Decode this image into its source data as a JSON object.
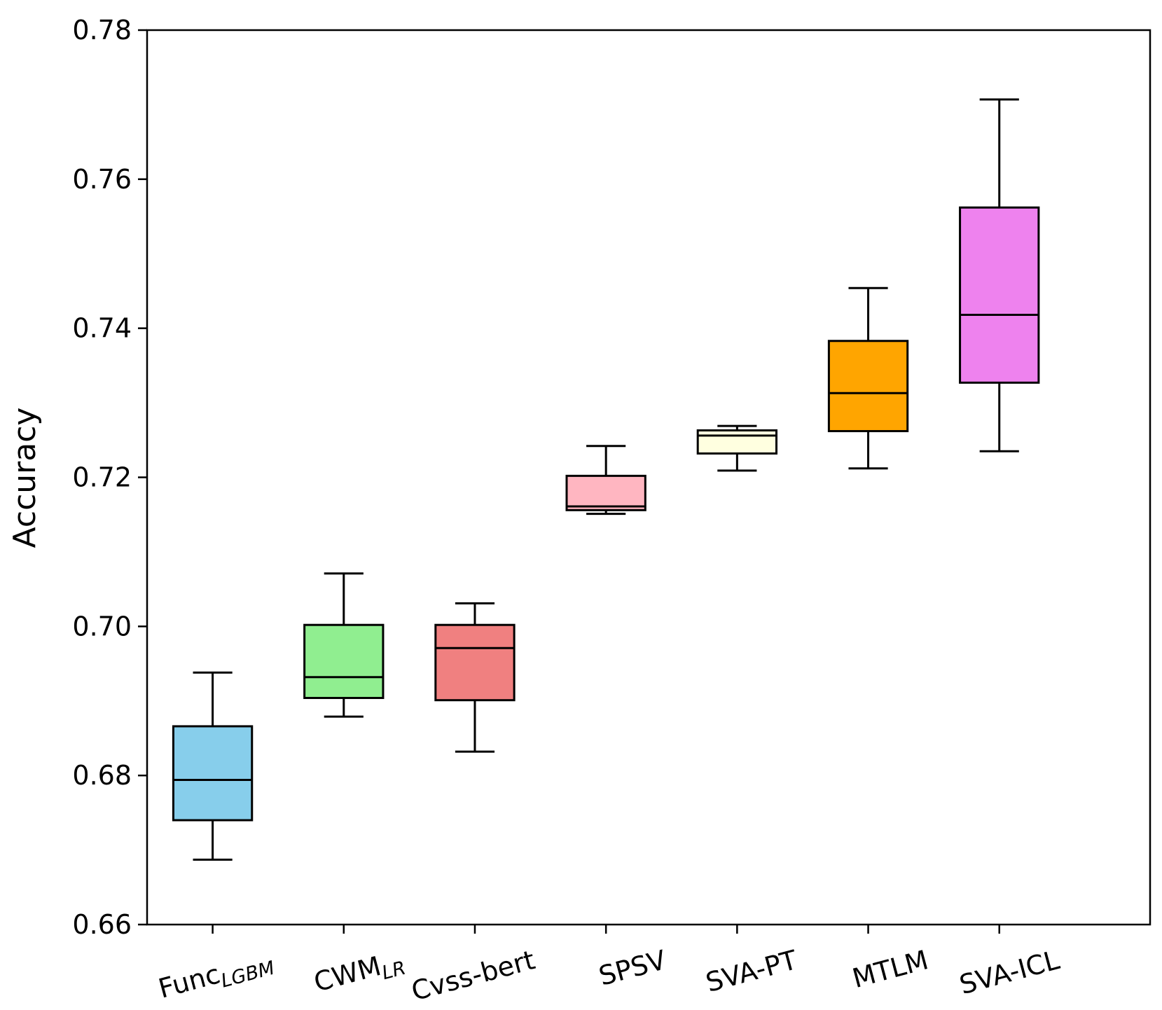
{
  "chart_data": {
    "type": "box",
    "title": "",
    "xlabel": "",
    "ylabel": "Accuracy",
    "ylim": [
      0.66,
      0.78
    ],
    "yticks": [
      0.66,
      0.68,
      0.7,
      0.72,
      0.74,
      0.76,
      0.78
    ],
    "ytick_labels": [
      "0.66",
      "0.68",
      "0.70",
      "0.72",
      "0.74",
      "0.76",
      "0.78"
    ],
    "grid": false,
    "series": [
      {
        "name": "FuncLGBM",
        "label_main": "Func",
        "label_sub": "LGBM",
        "color": "#87CEEB",
        "whisker_low": 0.6687,
        "q1": 0.674,
        "median": 0.6794,
        "q3": 0.6866,
        "whisker_high": 0.6938
      },
      {
        "name": "CWMLR",
        "label_main": "CWM",
        "label_sub": "LR",
        "color": "#90EE90",
        "whisker_low": 0.6879,
        "q1": 0.6904,
        "median": 0.6932,
        "q3": 0.7002,
        "whisker_high": 0.7071
      },
      {
        "name": "Cvss-bert",
        "label_main": "Cvss-bert",
        "label_sub": "",
        "color": "#F08080",
        "whisker_low": 0.6832,
        "q1": 0.6901,
        "median": 0.6971,
        "q3": 0.7002,
        "whisker_high": 0.7031
      },
      {
        "name": "SPSV",
        "label_main": "SPSV",
        "label_sub": "",
        "color": "#FFB6C1",
        "whisker_low": 0.7151,
        "q1": 0.7156,
        "median": 0.7161,
        "q3": 0.7202,
        "whisker_high": 0.7242
      },
      {
        "name": "SVA-PT",
        "label_main": "SVA-PT",
        "label_sub": "",
        "color": "#FFFFE0",
        "whisker_low": 0.7209,
        "q1": 0.7232,
        "median": 0.7256,
        "q3": 0.7263,
        "whisker_high": 0.7269
      },
      {
        "name": "MTLM",
        "label_main": "MTLM",
        "label_sub": "",
        "color": "#FFA500",
        "whisker_low": 0.7212,
        "q1": 0.7262,
        "median": 0.7313,
        "q3": 0.7383,
        "whisker_high": 0.7454
      },
      {
        "name": "SVA-ICL",
        "label_main": "SVA-ICL",
        "label_sub": "",
        "color": "#EE82EE",
        "whisker_low": 0.7235,
        "q1": 0.7327,
        "median": 0.7418,
        "q3": 0.7562,
        "whisker_high": 0.7707
      }
    ]
  }
}
